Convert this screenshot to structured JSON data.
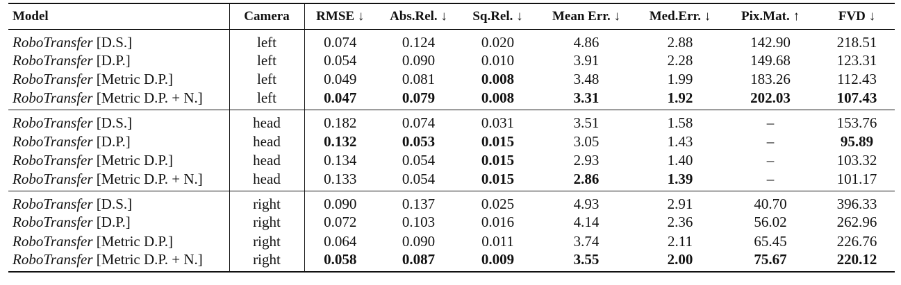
{
  "table": {
    "headers": {
      "model": "Model",
      "camera": "Camera",
      "rmse": "RMSE ↓",
      "abs_rel": "Abs.Rel. ↓",
      "sq_rel": "Sq.Rel. ↓",
      "mean_err": "Mean Err. ↓",
      "med_err": "Med.Err. ↓",
      "pix_mat": "Pix.Mat. ↑",
      "fvd": "FVD ↓"
    },
    "groups": [
      {
        "rows": [
          {
            "model": "RoboTransfer",
            "variant": "[D.S.]",
            "camera": "left",
            "rmse": "0.074",
            "abs_rel": "0.124",
            "sq_rel": "0.020",
            "mean_err": "4.86",
            "med_err": "2.88",
            "pix_mat": "142.90",
            "fvd": "218.51"
          },
          {
            "model": "RoboTransfer",
            "variant": "[D.P.]",
            "camera": "left",
            "rmse": "0.054",
            "abs_rel": "0.090",
            "sq_rel": "0.010",
            "mean_err": "3.91",
            "med_err": "2.28",
            "pix_mat": "149.68",
            "fvd": "123.31"
          },
          {
            "model": "RoboTransfer",
            "variant": "[Metric D.P.]",
            "camera": "left",
            "rmse": "0.049",
            "abs_rel": "0.081",
            "sq_rel": "0.008",
            "mean_err": "3.48",
            "med_err": "1.99",
            "pix_mat": "183.26",
            "fvd": "112.43"
          },
          {
            "model": "RoboTransfer",
            "variant": "[Metric D.P. + N.]",
            "camera": "left",
            "rmse": "0.047",
            "abs_rel": "0.079",
            "sq_rel": "0.008",
            "mean_err": "3.31",
            "med_err": "1.92",
            "pix_mat": "202.03",
            "fvd": "107.43"
          }
        ]
      },
      {
        "rows": [
          {
            "model": "RoboTransfer",
            "variant": "[D.S.]",
            "camera": "head",
            "rmse": "0.182",
            "abs_rel": "0.074",
            "sq_rel": "0.031",
            "mean_err": "3.51",
            "med_err": "1.58",
            "pix_mat": "–",
            "fvd": "153.76"
          },
          {
            "model": "RoboTransfer",
            "variant": "[D.P.]",
            "camera": "head",
            "rmse": "0.132",
            "abs_rel": "0.053",
            "sq_rel": "0.015",
            "mean_err": "3.05",
            "med_err": "1.43",
            "pix_mat": "–",
            "fvd": "95.89"
          },
          {
            "model": "RoboTransfer",
            "variant": "[Metric D.P.]",
            "camera": "head",
            "rmse": "0.134",
            "abs_rel": "0.054",
            "sq_rel": "0.015",
            "mean_err": "2.93",
            "med_err": "1.40",
            "pix_mat": "–",
            "fvd": "103.32"
          },
          {
            "model": "RoboTransfer",
            "variant": "[Metric D.P. + N.]",
            "camera": "head",
            "rmse": "0.133",
            "abs_rel": "0.054",
            "sq_rel": "0.015",
            "mean_err": "2.86",
            "med_err": "1.39",
            "pix_mat": "–",
            "fvd": "101.17"
          }
        ]
      },
      {
        "rows": [
          {
            "model": "RoboTransfer",
            "variant": "[D.S.]",
            "camera": "right",
            "rmse": "0.090",
            "abs_rel": "0.137",
            "sq_rel": "0.025",
            "mean_err": "4.93",
            "med_err": "2.91",
            "pix_mat": "40.70",
            "fvd": "396.33"
          },
          {
            "model": "RoboTransfer",
            "variant": "[D.P.]",
            "camera": "right",
            "rmse": "0.072",
            "abs_rel": "0.103",
            "sq_rel": "0.016",
            "mean_err": "4.14",
            "med_err": "2.36",
            "pix_mat": "56.02",
            "fvd": "262.96"
          },
          {
            "model": "RoboTransfer",
            "variant": "[Metric D.P.]",
            "camera": "right",
            "rmse": "0.064",
            "abs_rel": "0.090",
            "sq_rel": "0.011",
            "mean_err": "3.74",
            "med_err": "2.11",
            "pix_mat": "65.45",
            "fvd": "226.76"
          },
          {
            "model": "RoboTransfer",
            "variant": "[Metric D.P. + N.]",
            "camera": "right",
            "rmse": "0.058",
            "abs_rel": "0.087",
            "sq_rel": "0.009",
            "mean_err": "3.55",
            "med_err": "2.00",
            "pix_mat": "75.67",
            "fvd": "220.12"
          }
        ]
      }
    ]
  }
}
